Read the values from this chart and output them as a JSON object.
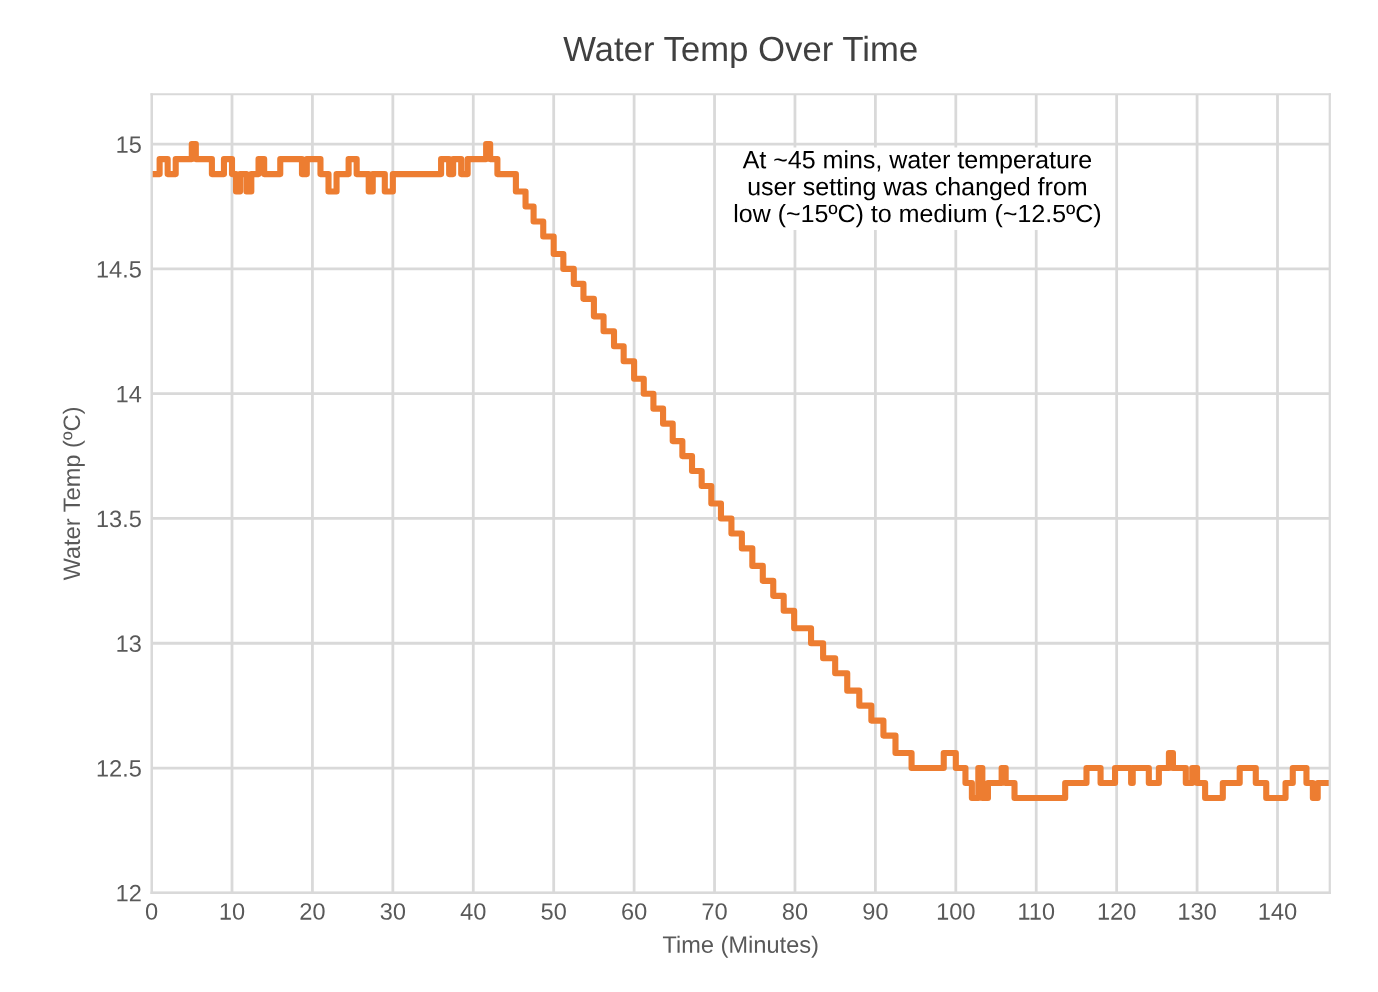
{
  "chart_data": {
    "type": "step",
    "title": "Water Temp Over Time",
    "xlabel": "Time (Minutes)",
    "ylabel": "Water Temp (ºC)",
    "annotations": [
      "At ~45 mins, water temperature\nuser setting was changed from\nlow (~15ºC) to medium (~12.5ºC)"
    ],
    "series": [
      {
        "color": "#ed7d31",
        "x": [
          0,
          1,
          2,
          3,
          5,
          5.5,
          7.5,
          9,
          10,
          10.5,
          11,
          11.8,
          12.4,
          13.3,
          14,
          16,
          18.7,
          19.3,
          21,
          22,
          23,
          24.5,
          25.5,
          27,
          27.5,
          29,
          30,
          36,
          37,
          37.5,
          38.5,
          39.3,
          41.6,
          42.1,
          43,
          45.3,
          46.5,
          47.5,
          48.7,
          50,
          51.2,
          52.5,
          53.7,
          55,
          56.2,
          57.5,
          58.7,
          60,
          61.2,
          62.4,
          63.6,
          64.8,
          66,
          67.2,
          68.4,
          69.6,
          70.8,
          72.1,
          73.4,
          74.7,
          76,
          77.3,
          78.6,
          79.9,
          82,
          83.5,
          85,
          86.5,
          88,
          89.5,
          91,
          92.5,
          94.5,
          98.5,
          100,
          101.2,
          102,
          102.8,
          103.3,
          104,
          105.7,
          106.2,
          107.3,
          113.6,
          116.25,
          118,
          119.8,
          121.8,
          122,
          124,
          125.25,
          126.5,
          127,
          128.6,
          129.4,
          130,
          131,
          133.2,
          135.3,
          137.3,
          138.6,
          141,
          141.9,
          143.6,
          144.4,
          145,
          146.3
        ],
        "values": [
          14.88,
          14.94,
          14.88,
          14.94,
          15.0,
          14.94,
          14.88,
          14.94,
          14.88,
          14.81,
          14.88,
          14.81,
          14.88,
          14.94,
          14.88,
          14.94,
          14.88,
          14.94,
          14.88,
          14.81,
          14.88,
          14.94,
          14.88,
          14.81,
          14.88,
          14.81,
          14.88,
          14.94,
          14.88,
          14.94,
          14.88,
          14.94,
          15.0,
          14.94,
          14.88,
          14.81,
          14.75,
          14.69,
          14.63,
          14.56,
          14.5,
          14.44,
          14.38,
          14.31,
          14.25,
          14.19,
          14.13,
          14.06,
          14.0,
          13.94,
          13.88,
          13.81,
          13.75,
          13.69,
          13.63,
          13.56,
          13.5,
          13.44,
          13.38,
          13.31,
          13.25,
          13.19,
          13.13,
          13.06,
          13.0,
          12.94,
          12.88,
          12.81,
          12.75,
          12.69,
          12.63,
          12.56,
          12.5,
          12.56,
          12.5,
          12.44,
          12.38,
          12.5,
          12.38,
          12.44,
          12.5,
          12.44,
          12.38,
          12.44,
          12.5,
          12.44,
          12.5,
          12.44,
          12.5,
          12.44,
          12.5,
          12.56,
          12.5,
          12.44,
          12.5,
          12.44,
          12.38,
          12.44,
          12.5,
          12.44,
          12.38,
          12.44,
          12.5,
          12.44,
          12.38,
          12.44,
          12.44
        ]
      }
    ],
    "xlim": [
      0,
      146.5
    ],
    "xticks": [
      0,
      10,
      20,
      30,
      40,
      50,
      60,
      70,
      80,
      90,
      100,
      110,
      120,
      130,
      140
    ],
    "ylim": [
      12,
      15.2
    ],
    "yticks": [
      12,
      12.5,
      13,
      13.5,
      14,
      14.5,
      15
    ],
    "grid": true,
    "line_style": "solid",
    "marker": "none"
  }
}
